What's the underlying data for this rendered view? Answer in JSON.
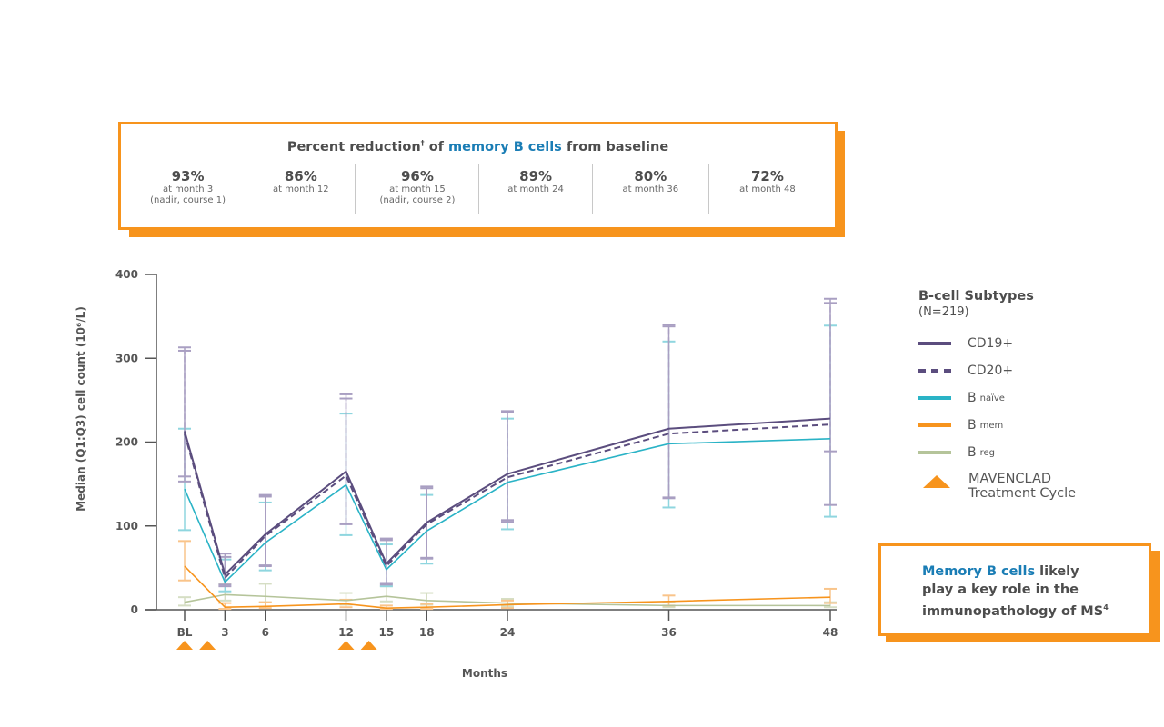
{
  "summary": {
    "title_pre": "Percent reduction",
    "title_sup": "‡",
    "title_mid": " of ",
    "title_highlight": "memory B cells",
    "title_post": " from baseline",
    "stats": [
      {
        "value": "93%",
        "label": "at month 3",
        "note": "(nadir, course 1)"
      },
      {
        "value": "86%",
        "label": "at month 12",
        "note": ""
      },
      {
        "value": "96%",
        "label": "at month 15",
        "note": "(nadir, course 2)"
      },
      {
        "value": "89%",
        "label": "at month 24",
        "note": ""
      },
      {
        "value": "80%",
        "label": "at month 36",
        "note": ""
      },
      {
        "value": "72%",
        "label": "at month 48",
        "note": ""
      }
    ]
  },
  "legend": {
    "title": "B-cell Subtypes",
    "n": "(N=219)",
    "items": [
      {
        "label": "CD19+",
        "sub": "",
        "color": "#5b4d7e",
        "style": "solid"
      },
      {
        "label": "CD20+",
        "sub": "",
        "color": "#5b4d7e",
        "style": "dashed"
      },
      {
        "label": "B",
        "sub": "naïve",
        "color": "#2ab3c6",
        "style": "solid"
      },
      {
        "label": "B",
        "sub": "mem",
        "color": "#f7941d",
        "style": "solid"
      },
      {
        "label": "B",
        "sub": "reg",
        "color": "#b5c49a",
        "style": "solid"
      }
    ],
    "treatment_line1": "MAVENCLAD",
    "treatment_line2": "Treatment Cycle"
  },
  "callout": {
    "highlight": "Memory B cells",
    "text1": " likely",
    "text2": "play a key role in the",
    "text3": "immunopathology of MS",
    "sup": "4"
  },
  "chart_data": {
    "type": "line",
    "xlabel": "Months",
    "ylabel": "Median (Q1:Q3) cell count (10⁶/L)",
    "ylim": [
      0,
      400
    ],
    "yticks": [
      0,
      100,
      200,
      300,
      400
    ],
    "x": [
      0,
      3,
      6,
      12,
      15,
      18,
      24,
      36,
      48
    ],
    "xtick_labels": [
      "BL",
      "3",
      "6",
      "12",
      "15",
      "18",
      "24",
      "36",
      "48"
    ],
    "treatment_cycles_months": [
      0,
      1.7,
      12,
      13.7
    ],
    "treatment_color": "#f7941d",
    "series": [
      {
        "name": "CD19+",
        "color": "#5b4d7e",
        "err_color": "#a99fc2",
        "dashed": false,
        "values": [
          213,
          42,
          90,
          165,
          55,
          104,
          162,
          216,
          228
        ],
        "q1": [
          153,
          28,
          52,
          102,
          30,
          61,
          105,
          134,
          125
        ],
        "q3": [
          313,
          67,
          137,
          257,
          85,
          147,
          237,
          340,
          371
        ]
      },
      {
        "name": "CD20+",
        "color": "#5b4d7e",
        "err_color": "#a99fc2",
        "dashed": true,
        "values": [
          210,
          38,
          88,
          160,
          52,
          102,
          158,
          210,
          221
        ],
        "q1": [
          159,
          30,
          53,
          103,
          32,
          62,
          107,
          133,
          189
        ],
        "q3": [
          309,
          63,
          135,
          252,
          83,
          145,
          236,
          338,
          366
        ]
      },
      {
        "name": "B naïve",
        "color": "#2ab3c6",
        "err_color": "#8fd6df",
        "dashed": false,
        "values": [
          144,
          33,
          80,
          149,
          48,
          94,
          152,
          198,
          204
        ],
        "q1": [
          95,
          22,
          47,
          89,
          28,
          55,
          96,
          122,
          111
        ],
        "q3": [
          216,
          60,
          128,
          234,
          78,
          137,
          228,
          320,
          339
        ]
      },
      {
        "name": "B mem",
        "color": "#f7941d",
        "err_color": "#f9c48a",
        "dashed": false,
        "values": [
          52,
          3,
          4,
          7,
          2,
          3,
          6,
          10,
          15
        ],
        "q1": [
          35,
          1,
          2,
          3,
          1,
          1,
          2,
          5,
          8
        ],
        "q3": [
          82,
          8,
          9,
          12,
          5,
          7,
          11,
          17,
          25
        ]
      },
      {
        "name": "B reg",
        "color": "#b5c49a",
        "err_color": "#d6dec4",
        "dashed": false,
        "values": [
          9,
          18,
          16,
          11,
          16,
          11,
          8,
          5,
          5
        ],
        "q1": [
          5,
          11,
          9,
          6,
          10,
          6,
          4,
          3,
          3
        ],
        "q3": [
          15,
          31,
          31,
          20,
          28,
          20,
          13,
          9,
          9
        ]
      }
    ]
  }
}
